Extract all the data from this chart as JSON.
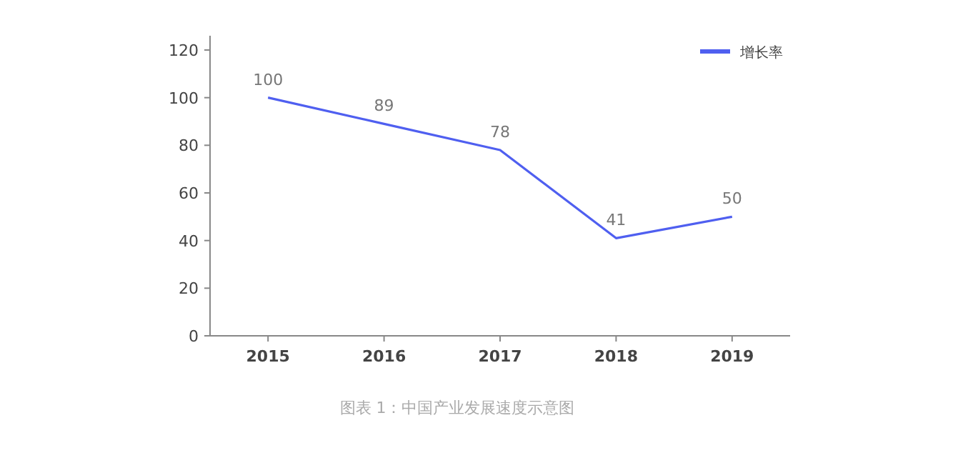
{
  "chart_data": {
    "type": "line",
    "categories": [
      "2015",
      "2016",
      "2017",
      "2018",
      "2019"
    ],
    "series": [
      {
        "name": "增长率",
        "color": "#4f5ff0",
        "values": [
          100,
          89,
          78,
          41,
          50
        ]
      }
    ],
    "ylim": [
      0,
      126
    ],
    "yticks": [
      0,
      20,
      40,
      60,
      80,
      100,
      120
    ],
    "grid": false,
    "legend": "top right",
    "data_labels": true,
    "annotations": [
      "图表 1：中国产业发展速度示意图"
    ]
  }
}
